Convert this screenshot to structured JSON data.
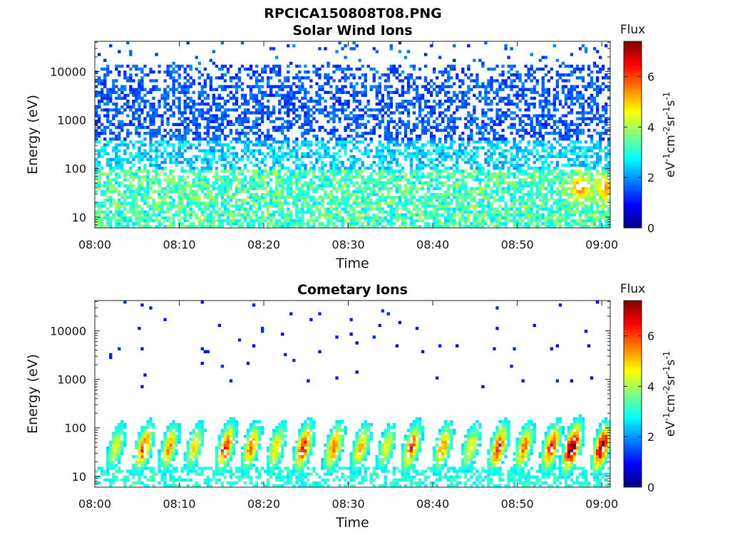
{
  "figure_title": "RPCICA150808T08.PNG",
  "chart_data": [
    {
      "type": "heatmap",
      "title": "Solar Wind Ions",
      "xlabel": "Time",
      "ylabel": "Energy (eV)",
      "x_ticks": [
        "08:00",
        "08:10",
        "08:20",
        "08:30",
        "08:40",
        "08:50",
        "09:00"
      ],
      "x_range_minutes": [
        0,
        61
      ],
      "y_ticks": [
        "10",
        "100",
        "1000",
        "10000"
      ],
      "y_scale": "log",
      "y_range": [
        6,
        42000
      ],
      "colorbar": {
        "label": "Flux",
        "unit": "eV-1cm-2sr-1s-1",
        "ticks": [
          "0",
          "2",
          "4",
          "6"
        ],
        "range": [
          0,
          7.4
        ],
        "colormap": "jet"
      },
      "hotspots": [
        {
          "minute": 57.5,
          "energy": 40,
          "flux": 5.6
        },
        {
          "minute": 60.5,
          "energy": 40,
          "flux": 5.4
        }
      ]
    },
    {
      "type": "heatmap",
      "title": "Cometary Ions",
      "xlabel": "Time",
      "ylabel": "Energy (eV)",
      "x_ticks": [
        "08:00",
        "08:10",
        "08:20",
        "08:30",
        "08:40",
        "08:50",
        "09:00"
      ],
      "x_range_minutes": [
        0,
        61
      ],
      "y_ticks": [
        "10",
        "100",
        "1000",
        "10000"
      ],
      "y_scale": "log",
      "y_range": [
        6,
        42000
      ],
      "colorbar": {
        "label": "Flux",
        "unit": "eV-1cm-2sr-1s-1",
        "ticks": [
          "0",
          "2",
          "4",
          "6"
        ],
        "range": [
          0,
          7.4
        ],
        "colormap": "jet"
      },
      "bursts_minutes": [
        2.5,
        5.8,
        8.8,
        11.8,
        15.5,
        18.5,
        21.5,
        24.7,
        28.3,
        31.5,
        34.5,
        37.5,
        41.2,
        44.5,
        47.8,
        50.8,
        54.0,
        56.5,
        60.0
      ],
      "peak_energy": 40,
      "peak_flux": 6.8
    }
  ]
}
